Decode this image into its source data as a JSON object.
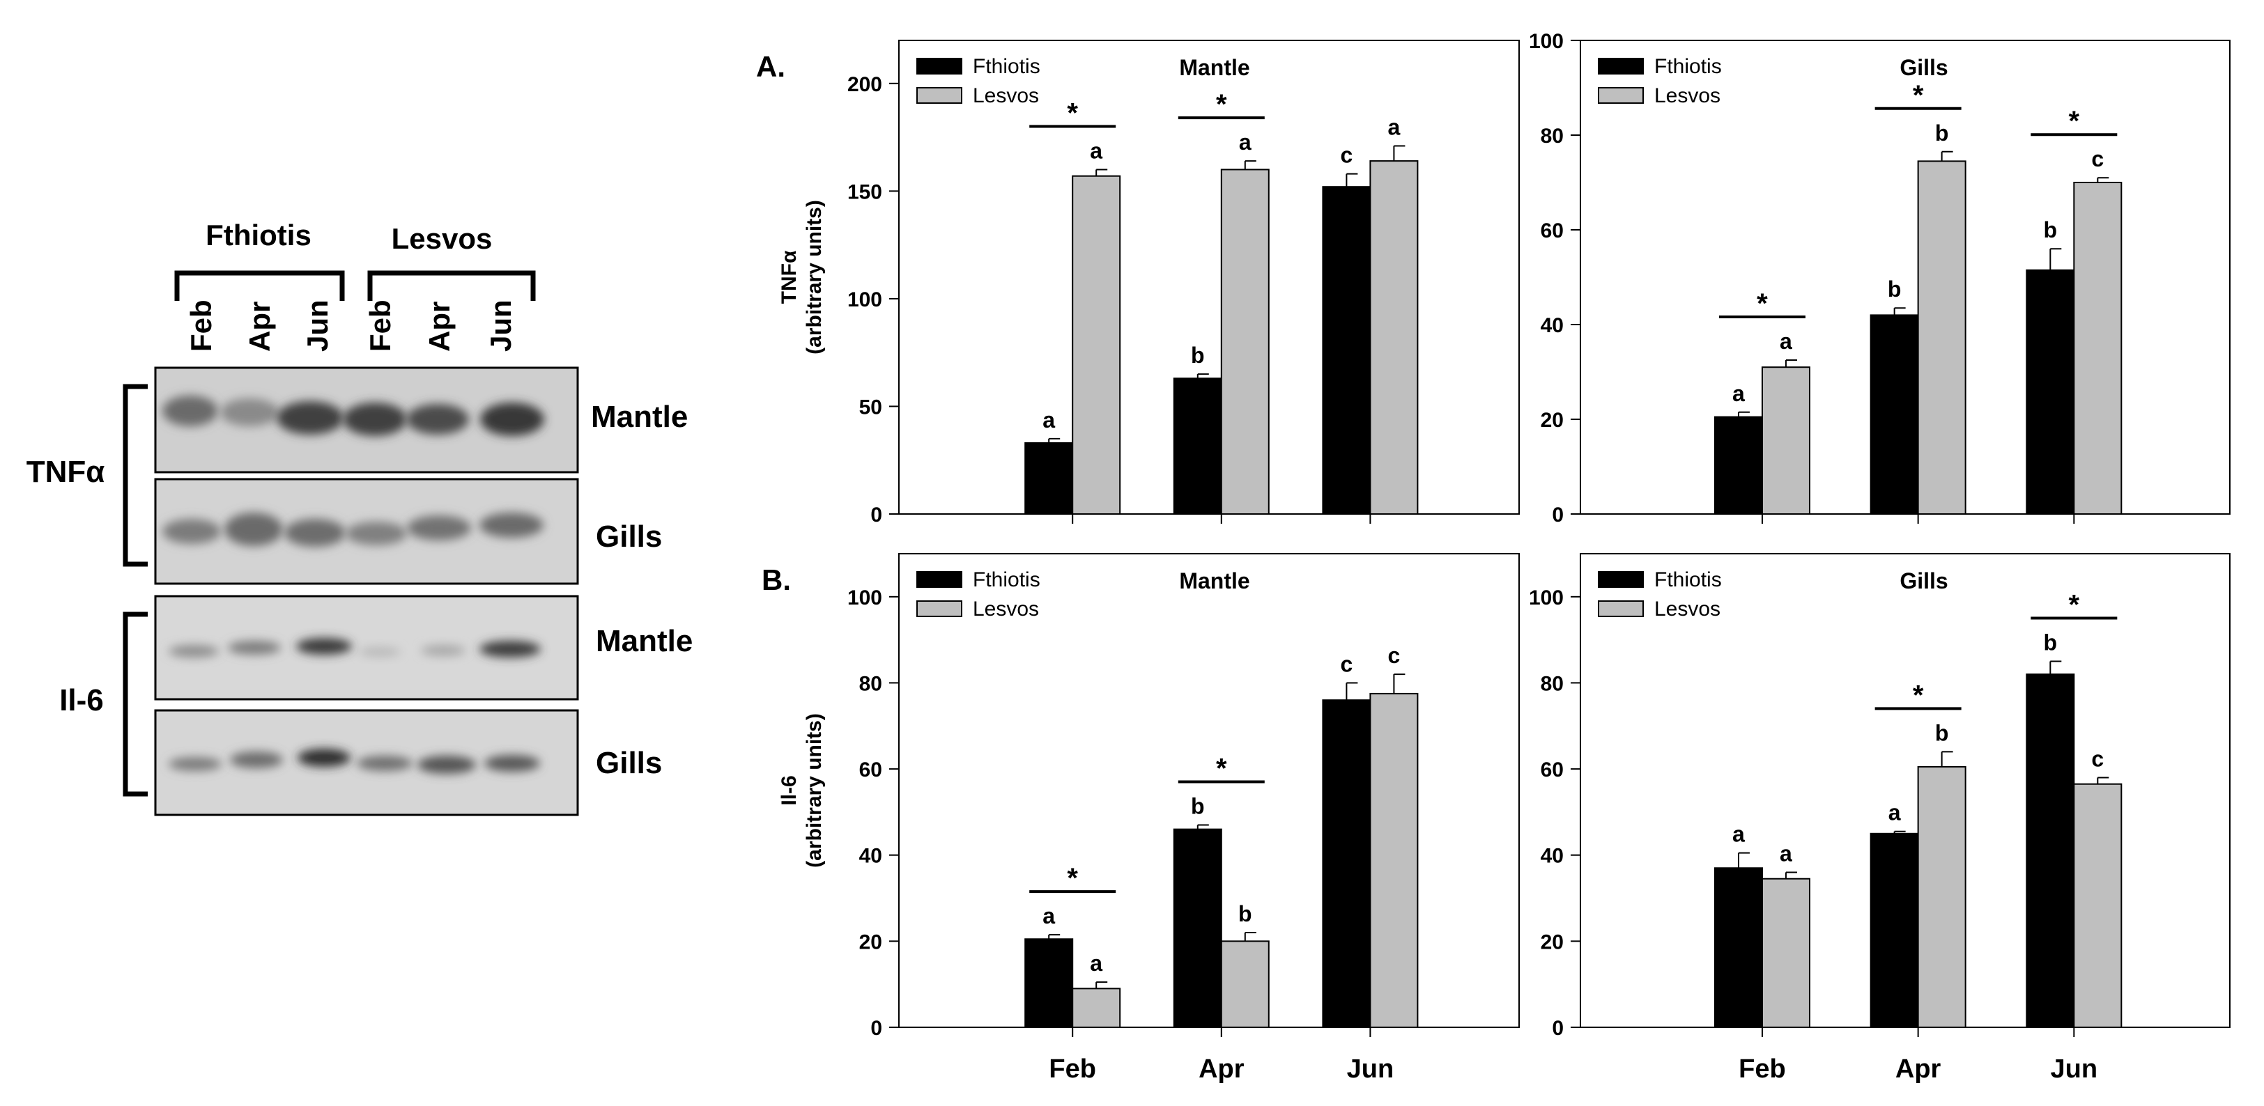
{
  "blot": {
    "group_labels": [
      "Fthiotis",
      "Lesvos"
    ],
    "lane_labels": [
      "Feb",
      "Apr",
      "Jun",
      "Feb",
      "Apr",
      "Jun"
    ],
    "protein_labels": [
      "TNFα",
      "Il-6"
    ],
    "tissue_labels": [
      "Mantle",
      "Gills",
      "Mantle",
      "Gills"
    ]
  },
  "colors": {
    "fthiotis": "#000000",
    "lesvos": "#bfbfbf"
  },
  "chart_data": [
    {
      "type": "bar",
      "panel_label": "A.",
      "title": "Mantle",
      "ylabel_line1": "TNFα",
      "ylabel_line2": "(arbitrary units)",
      "xlabel": "",
      "categories": [
        "Feb",
        "Apr",
        "Jun"
      ],
      "ylim": [
        0,
        220
      ],
      "yticks": [
        0,
        50,
        100,
        150,
        200
      ],
      "legend_position": "top-left",
      "series": [
        {
          "name": "Fthiotis",
          "values": [
            33,
            63,
            152
          ],
          "errors": [
            2,
            2,
            6
          ],
          "letters": [
            "a",
            "b",
            "c"
          ]
        },
        {
          "name": "Lesvos",
          "values": [
            157,
            160,
            164
          ],
          "errors": [
            3,
            4,
            7
          ],
          "letters": [
            "a",
            "a",
            "a"
          ]
        }
      ],
      "significance": [
        "*",
        "*",
        ""
      ]
    },
    {
      "type": "bar",
      "panel_label": "",
      "title": "Gills",
      "ylabel_line1": "",
      "ylabel_line2": "",
      "xlabel": "",
      "categories": [
        "Feb",
        "Apr",
        "Jun"
      ],
      "ylim": [
        0,
        100
      ],
      "yticks": [
        0,
        20,
        40,
        60,
        80,
        100
      ],
      "legend_position": "top-left",
      "series": [
        {
          "name": "Fthiotis",
          "values": [
            20.5,
            42,
            51.5
          ],
          "errors": [
            1,
            1.5,
            4.5
          ],
          "letters": [
            "a",
            "b",
            "b"
          ]
        },
        {
          "name": "Lesvos",
          "values": [
            31,
            74.5,
            70
          ],
          "errors": [
            1.5,
            2,
            1
          ],
          "letters": [
            "a",
            "b",
            "c"
          ]
        }
      ],
      "significance": [
        "*",
        "*",
        "*"
      ]
    },
    {
      "type": "bar",
      "panel_label": "B.",
      "title": "Mantle",
      "ylabel_line1": "Il-6",
      "ylabel_line2": "(arbitrary units)",
      "xlabel": "",
      "categories": [
        "Feb",
        "Apr",
        "Jun"
      ],
      "ylim": [
        0,
        110
      ],
      "yticks": [
        0,
        20,
        40,
        60,
        80,
        100
      ],
      "legend_position": "top-left",
      "series": [
        {
          "name": "Fthiotis",
          "values": [
            20.5,
            46,
            76
          ],
          "errors": [
            1,
            1,
            4
          ],
          "letters": [
            "a",
            "b",
            "c"
          ]
        },
        {
          "name": "Lesvos",
          "values": [
            9,
            20,
            77.5
          ],
          "errors": [
            1.5,
            2,
            4.5
          ],
          "letters": [
            "a",
            "b",
            "c"
          ]
        }
      ],
      "significance": [
        "*",
        "*",
        ""
      ]
    },
    {
      "type": "bar",
      "panel_label": "",
      "title": "Gills",
      "ylabel_line1": "",
      "ylabel_line2": "",
      "xlabel": "",
      "categories": [
        "Feb",
        "Apr",
        "Jun"
      ],
      "ylim": [
        0,
        110
      ],
      "yticks": [
        0,
        20,
        40,
        60,
        80,
        100
      ],
      "legend_position": "top-left",
      "series": [
        {
          "name": "Fthiotis",
          "values": [
            37,
            45,
            82
          ],
          "errors": [
            3.5,
            0.5,
            3
          ],
          "letters": [
            "a",
            "a",
            "b"
          ]
        },
        {
          "name": "Lesvos",
          "values": [
            34.5,
            60.5,
            56.5
          ],
          "errors": [
            1.5,
            3.5,
            1.5
          ],
          "letters": [
            "a",
            "b",
            "c"
          ]
        }
      ],
      "significance": [
        "",
        "*",
        "*"
      ]
    }
  ]
}
